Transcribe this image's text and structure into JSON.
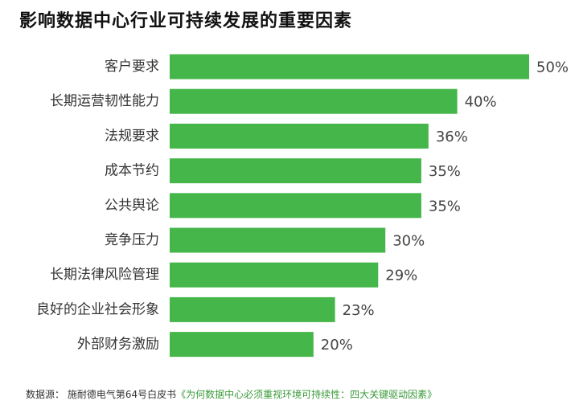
{
  "title": "影响数据中心行业可持续发展的重要因素",
  "chart_data": {
    "type": "bar",
    "orientation": "horizontal",
    "categories": [
      "客户要求",
      "长期运营韧性能力",
      "法规要求",
      "成本节约",
      "公共舆论",
      "竞争压力",
      "长期法律风险管理",
      "良好的企业社会形象",
      "外部财务激励"
    ],
    "values": [
      50,
      40,
      36,
      35,
      35,
      30,
      29,
      23,
      20
    ],
    "value_labels": [
      "50%",
      "40%",
      "36%",
      "35%",
      "35%",
      "30%",
      "29%",
      "23%",
      "20%"
    ],
    "unit": "%",
    "bar_color": "#45b649",
    "grid": false,
    "legend": "none"
  },
  "source": {
    "prefix": "数据源： 施耐德电气第64号白皮书",
    "link": "《为何数据中心必须重视环境可持续性：四大关键驱动因素》"
  }
}
